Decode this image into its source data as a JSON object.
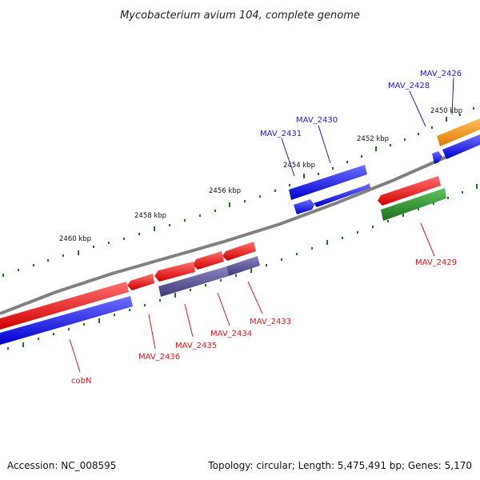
{
  "title": "Mycobacterium avium 104, complete genome",
  "footer": {
    "accession": "Accession: NC_008595",
    "summary": "Topology: circular; Length: 5,475,491 bp; Genes: 5,170"
  },
  "kbp_labels": [
    "2450 kbp",
    "2452 kbp",
    "2454 kbp",
    "2456 kbp",
    "2458 kbp",
    "2460 kbp"
  ],
  "gene_labels": {
    "mav_2426": "MAV_2426",
    "mav_2428": "MAV_2428",
    "mav_2430": "MAV_2430",
    "mav_2431": "MAV_2431",
    "mav_2429": "MAV_2429",
    "mav_2433": "MAV_2433",
    "mav_2434": "MAV_2434",
    "mav_2435": "MAV_2435",
    "mav_2436": "MAV_2436",
    "cobn": "cobN"
  },
  "colors": {
    "forward_strand": "#1a1aee",
    "reverse_strand": "#ee1a1a",
    "rna_or_other": "#2e8b2e",
    "pseudo": "#55508f",
    "misc": "#f0900f",
    "backbone": "#808080",
    "ticks": "#1a7a1a"
  }
}
